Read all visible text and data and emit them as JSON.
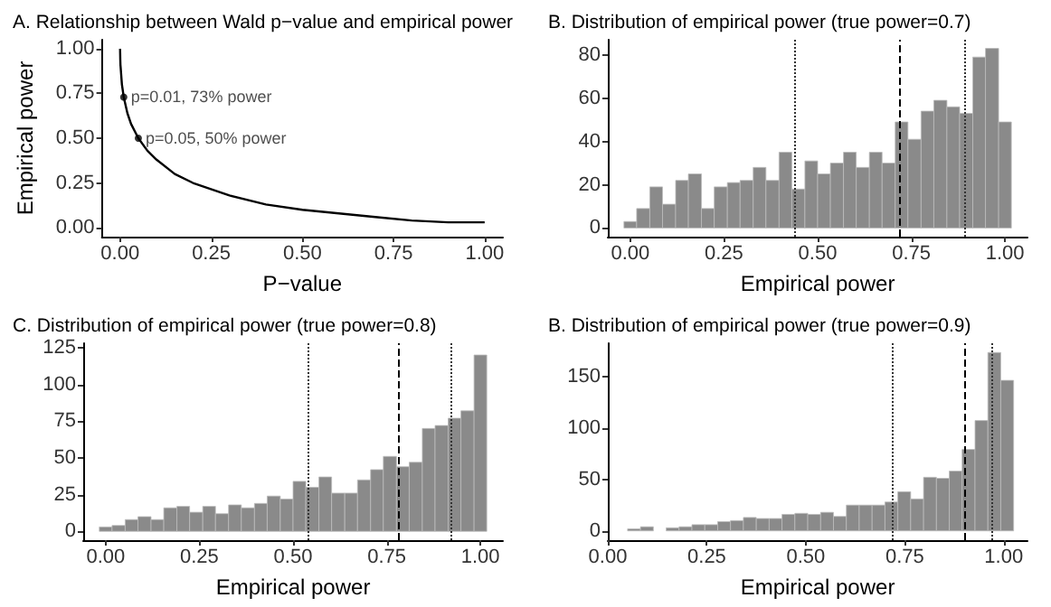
{
  "chart_data": [
    {
      "type": "line",
      "title": "A. Relationship between Wald p−value and empirical power",
      "xlabel": "P−value",
      "ylabel": "Empirical power",
      "grid": false,
      "series": [
        {
          "type": "line",
          "color": "#000000",
          "x": [
            0,
            0.0005,
            0.001,
            0.005,
            0.01,
            0.02,
            0.03,
            0.05,
            0.075,
            0.1,
            0.15,
            0.2,
            0.3,
            0.4,
            0.5,
            0.6,
            0.7,
            0.8,
            0.9,
            1.0
          ],
          "values": [
            1.0,
            0.94,
            0.91,
            0.8,
            0.73,
            0.64,
            0.58,
            0.5,
            0.43,
            0.38,
            0.3,
            0.25,
            0.18,
            0.13,
            0.1,
            0.08,
            0.06,
            0.04,
            0.03,
            0.03
          ]
        }
      ],
      "annotations": [
        {
          "text": "p=0.01, 73% power",
          "x": 0.01,
          "y": 0.73
        },
        {
          "text": "p=0.05, 50% power",
          "x": 0.05,
          "y": 0.5
        }
      ],
      "xlim": [
        -0.05,
        1.05
      ],
      "xticks": [
        {
          "value": 0,
          "label": "0.00"
        },
        {
          "value": 0.25,
          "label": "0.25"
        },
        {
          "value": 0.5,
          "label": "0.50"
        },
        {
          "value": 0.75,
          "label": "0.75"
        },
        {
          "value": 1,
          "label": "1.00"
        }
      ],
      "ylim": [
        -0.05,
        1.05
      ],
      "yticks": [
        {
          "value": 0,
          "label": "0.00"
        },
        {
          "value": 0.25,
          "label": "0.25"
        },
        {
          "value": 0.5,
          "label": "0.50"
        },
        {
          "value": 0.75,
          "label": "0.75"
        },
        {
          "value": 1,
          "label": "1.00"
        }
      ]
    },
    {
      "type": "histogram",
      "title": "B. Distribution of empirical power (true power=0.7)",
      "xlabel": "Empirical power",
      "color": "#8a8a8a",
      "grid": false,
      "bins": [
        -0.017,
        0.017,
        0.052,
        0.086,
        0.121,
        0.155,
        0.19,
        0.224,
        0.259,
        0.293,
        0.328,
        0.362,
        0.397,
        0.431,
        0.466,
        0.5,
        0.534,
        0.569,
        0.603,
        0.638,
        0.672,
        0.707,
        0.741,
        0.776,
        0.81,
        0.845,
        0.879,
        0.914,
        0.948,
        0.983,
        1.017
      ],
      "values": [
        3,
        9,
        19,
        11,
        22,
        25,
        9,
        19,
        21,
        22,
        28,
        22,
        35,
        18,
        31,
        25,
        30,
        35,
        28,
        35,
        30,
        49,
        41,
        54,
        59,
        56,
        53,
        79,
        83,
        49
      ],
      "ref_lines": [
        {
          "axis": "x",
          "value": 0.44,
          "line_style": "dotted",
          "color": "#333333"
        },
        {
          "axis": "x",
          "value": 0.72,
          "line_style": "dashed",
          "color": "#000000"
        },
        {
          "axis": "x",
          "value": 0.885,
          "line_style": "dotted",
          "color": "#333333"
        }
      ],
      "xlim": [
        -0.06,
        1.06
      ],
      "xticks": [
        {
          "value": 0,
          "label": "0.00"
        },
        {
          "value": 0.25,
          "label": "0.25"
        },
        {
          "value": 0.5,
          "label": "0.50"
        },
        {
          "value": 0.75,
          "label": "0.75"
        },
        {
          "value": 1,
          "label": "1.00"
        }
      ],
      "ylim": [
        -4,
        87
      ],
      "yticks": [
        0,
        20,
        40,
        60,
        80
      ]
    },
    {
      "type": "histogram",
      "title": "C. Distribution of empirical power (true power=0.8)",
      "xlabel": "Empirical power",
      "color": "#8a8a8a",
      "grid": false,
      "bins": [
        -0.017,
        0.017,
        0.052,
        0.086,
        0.121,
        0.155,
        0.19,
        0.224,
        0.259,
        0.293,
        0.328,
        0.362,
        0.397,
        0.431,
        0.466,
        0.5,
        0.534,
        0.569,
        0.603,
        0.638,
        0.672,
        0.707,
        0.741,
        0.776,
        0.81,
        0.845,
        0.879,
        0.914,
        0.948,
        0.983,
        1.017
      ],
      "values": [
        3,
        4,
        8,
        10,
        8,
        16,
        17,
        13,
        17,
        12,
        18,
        16,
        19,
        24,
        22,
        34,
        30,
        37,
        26,
        26,
        35,
        42,
        51,
        44,
        47,
        70,
        72,
        77,
        82,
        120
      ],
      "ref_lines": [
        {
          "axis": "x",
          "value": 0.54,
          "line_style": "dotted",
          "color": "#333333"
        },
        {
          "axis": "x",
          "value": 0.776,
          "line_style": "dashed",
          "color": "#000000"
        },
        {
          "axis": "x",
          "value": 0.92,
          "line_style": "dotted",
          "color": "#333333"
        }
      ],
      "xlim": [
        -0.06,
        1.06
      ],
      "xticks": [
        {
          "value": 0,
          "label": "0.00"
        },
        {
          "value": 0.25,
          "label": "0.25"
        },
        {
          "value": 0.5,
          "label": "0.50"
        },
        {
          "value": 0.75,
          "label": "0.75"
        },
        {
          "value": 1,
          "label": "1.00"
        }
      ],
      "ylim": [
        -6,
        128
      ],
      "yticks": [
        0,
        25,
        50,
        75,
        100,
        125
      ]
    },
    {
      "type": "histogram",
      "title": "B. Distribution of empirical power (true power=0.9)",
      "xlabel": "Empirical power",
      "color": "#8a8a8a",
      "grid": false,
      "bins": [
        0.05,
        0.0825,
        0.115,
        0.1475,
        0.18,
        0.2125,
        0.245,
        0.2775,
        0.31,
        0.3425,
        0.375,
        0.4075,
        0.44,
        0.4725,
        0.505,
        0.5375,
        0.57,
        0.6025,
        0.635,
        0.6675,
        0.7,
        0.7325,
        0.765,
        0.7975,
        0.83,
        0.8625,
        0.895,
        0.9275,
        0.96,
        0.9925,
        1.025
      ],
      "values": [
        2,
        4,
        0,
        3,
        4,
        6,
        6,
        9,
        10,
        13,
        12,
        12,
        16,
        17,
        16,
        18,
        14,
        25,
        25,
        25,
        28,
        38,
        31,
        52,
        51,
        58,
        79,
        107,
        173,
        146
      ],
      "ref_lines": [
        {
          "axis": "x",
          "value": 0.72,
          "line_style": "dotted",
          "color": "#333333"
        },
        {
          "axis": "x",
          "value": 0.895,
          "line_style": "dashed",
          "color": "#000000"
        },
        {
          "axis": "x",
          "value": 0.975,
          "line_style": "dotted",
          "color": "#333333"
        }
      ],
      "xlim": [
        0,
        1.06
      ],
      "xticks": [
        {
          "value": 0,
          "label": "0.00"
        },
        {
          "value": 0.25,
          "label": "0.25"
        },
        {
          "value": 0.5,
          "label": "0.50"
        },
        {
          "value": 0.75,
          "label": "0.75"
        },
        {
          "value": 1,
          "label": "1.00"
        }
      ],
      "ylim": [
        -9,
        182
      ],
      "yticks": [
        0,
        50,
        100,
        150
      ]
    }
  ]
}
